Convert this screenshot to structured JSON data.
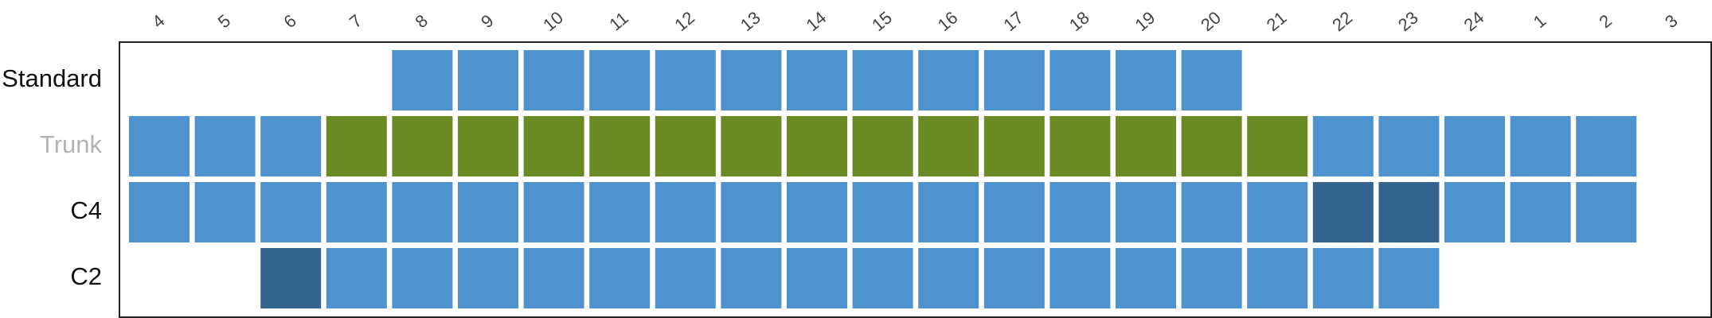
{
  "chart_data": {
    "type": "heatmap",
    "hours": [
      "4",
      "5",
      "6",
      "7",
      "8",
      "9",
      "10",
      "11",
      "12",
      "13",
      "14",
      "15",
      "16",
      "17",
      "18",
      "19",
      "20",
      "21",
      "22",
      "23",
      "24",
      "1",
      "2",
      "3"
    ],
    "rows": [
      {
        "label": "Standard",
        "label_color": "#111111",
        "cells": [
          null,
          null,
          null,
          null,
          "normal",
          "normal",
          "normal",
          "normal",
          "normal",
          "normal",
          "normal",
          "normal",
          "normal",
          "normal",
          "normal",
          "normal",
          "normal",
          null,
          null,
          null,
          null,
          null,
          null,
          null
        ]
      },
      {
        "label": "Trunk",
        "label_color": "#b3b3b3",
        "cells": [
          "normal",
          "normal",
          "normal",
          "highlight",
          "highlight",
          "highlight",
          "highlight",
          "highlight",
          "highlight",
          "highlight",
          "highlight",
          "highlight",
          "highlight",
          "highlight",
          "highlight",
          "highlight",
          "highlight",
          "highlight",
          "normal",
          "normal",
          "normal",
          "normal",
          "normal",
          null
        ]
      },
      {
        "label": "C4",
        "label_color": "#111111",
        "cells": [
          "normal",
          "normal",
          "normal",
          "normal",
          "normal",
          "normal",
          "normal",
          "normal",
          "normal",
          "normal",
          "normal",
          "normal",
          "normal",
          "normal",
          "normal",
          "normal",
          "normal",
          "normal",
          "dark",
          "dark",
          "normal",
          "normal",
          "normal",
          null
        ]
      },
      {
        "label": "C2",
        "label_color": "#111111",
        "cells": [
          null,
          null,
          "dark",
          "normal",
          "normal",
          "normal",
          "normal",
          "normal",
          "normal",
          "normal",
          "normal",
          "normal",
          "normal",
          "normal",
          "normal",
          "normal",
          "normal",
          "normal",
          "normal",
          "normal",
          null,
          null,
          null,
          null
        ]
      }
    ],
    "colors": {
      "normal": "#4e93cf",
      "highlight": "#6a8a23",
      "dark": "#34638e"
    },
    "grid": false,
    "legend": "none"
  }
}
